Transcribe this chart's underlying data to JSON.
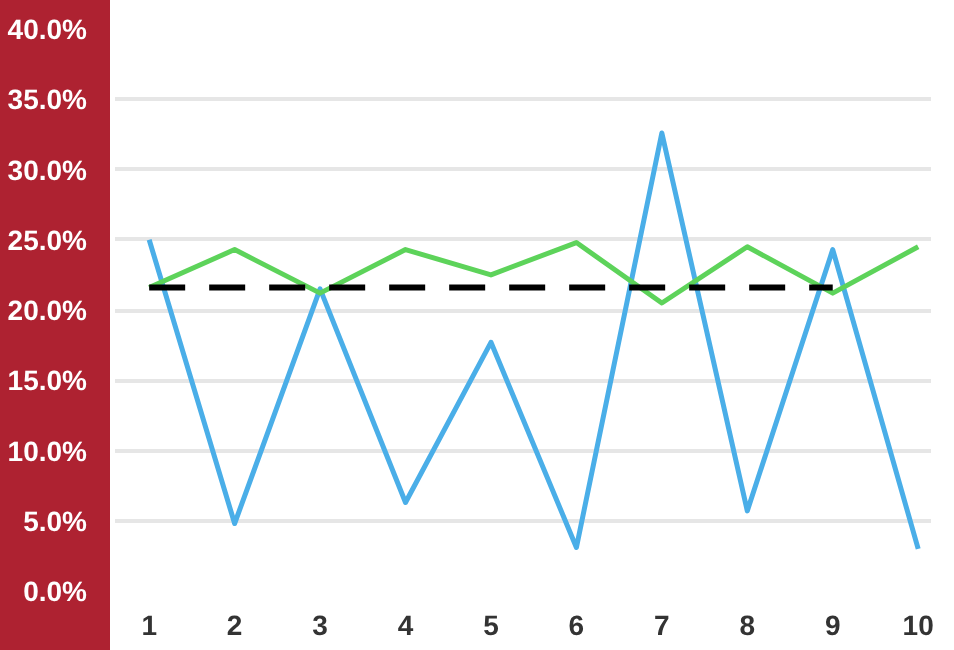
{
  "chart_data": {
    "type": "line",
    "x": [
      1,
      2,
      3,
      4,
      5,
      6,
      7,
      8,
      9,
      10
    ],
    "series": [
      {
        "color": "#4aaee8",
        "values": [
          25.0,
          4.8,
          21.5,
          6.3,
          17.7,
          3.1,
          32.6,
          5.7,
          24.3,
          3.0
        ]
      },
      {
        "color": "#5dd35a",
        "values": [
          21.6,
          24.3,
          21.2,
          24.3,
          22.5,
          24.8,
          20.5,
          24.5,
          21.2,
          24.5
        ]
      },
      {
        "color": "#000000",
        "x": [
          1,
          9
        ],
        "values": [
          21.6,
          21.6
        ],
        "line_style": "dashed"
      }
    ],
    "xlim": [
      0.6,
      10.15
    ],
    "ylim": [
      0,
      40
    ],
    "xticks": [
      1,
      2,
      3,
      4,
      5,
      6,
      7,
      8,
      9,
      10
    ],
    "yticks": [
      {
        "value": 0,
        "label": "0.0%"
      },
      {
        "value": 5,
        "label": "5.0%"
      },
      {
        "value": 10,
        "label": "10.0%"
      },
      {
        "value": 15,
        "label": "15.0%"
      },
      {
        "value": 20,
        "label": "20.0%"
      },
      {
        "value": 25,
        "label": "25.0%"
      },
      {
        "value": 30,
        "label": "30.0%"
      },
      {
        "value": 35,
        "label": "35.0%"
      },
      {
        "value": 40,
        "label": "40.0%"
      }
    ],
    "grid": "y",
    "marker": "none",
    "line_style": "solid"
  }
}
